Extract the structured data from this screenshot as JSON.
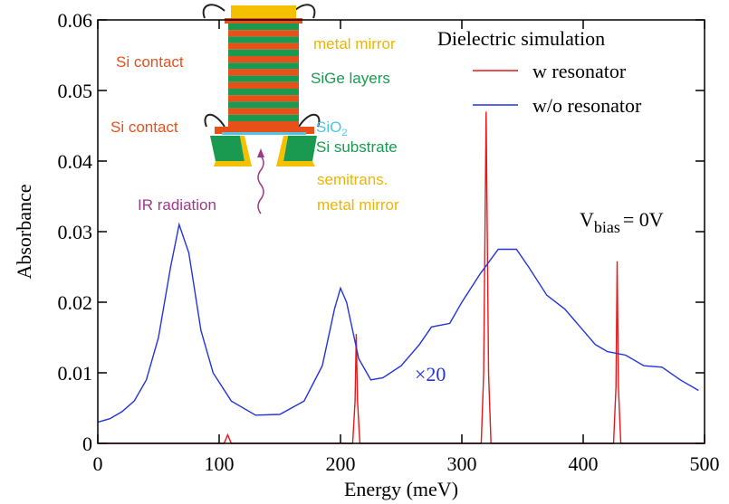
{
  "chart_data": {
    "type": "line",
    "x_label": "Energy (meV)",
    "y_label": "Absorbance",
    "xlim": [
      0,
      500
    ],
    "xticks": [
      0,
      100,
      200,
      300,
      400,
      500
    ],
    "ylim": [
      0,
      0.06
    ],
    "yticks": [
      0,
      0.01,
      0.02,
      0.03,
      0.04,
      0.05,
      0.06
    ],
    "legend_title": "Dielectric simulation",
    "legend": "upper right",
    "series": [
      {
        "name": "w resonator",
        "color": "#e41a1c",
        "x": [
          0,
          104,
          107,
          110,
          210,
          212,
          213,
          214,
          216,
          316,
          318,
          320,
          322,
          324,
          425,
          427,
          428,
          429,
          431,
          500
        ],
        "values": [
          0,
          0,
          0.0012,
          0,
          0,
          0.006,
          0.0155,
          0.006,
          0,
          0,
          0.01,
          0.047,
          0.01,
          0,
          0,
          0.008,
          0.0258,
          0.008,
          0,
          0
        ]
      },
      {
        "name": "w/o resonator",
        "color": "#2233dd",
        "x": [
          0,
          10,
          20,
          30,
          40,
          50,
          60,
          67,
          75,
          85,
          95,
          110,
          130,
          150,
          170,
          185,
          195,
          200,
          205,
          215,
          225,
          235,
          250,
          265,
          275,
          290,
          300,
          315,
          330,
          345,
          355,
          370,
          385,
          400,
          410,
          420,
          435,
          450,
          465,
          480,
          495
        ],
        "values": [
          0.003,
          0.0035,
          0.0045,
          0.006,
          0.009,
          0.015,
          0.025,
          0.031,
          0.027,
          0.016,
          0.01,
          0.006,
          0.004,
          0.0041,
          0.006,
          0.011,
          0.019,
          0.022,
          0.02,
          0.012,
          0.009,
          0.0093,
          0.011,
          0.014,
          0.0165,
          0.017,
          0.02,
          0.024,
          0.0275,
          0.0275,
          0.025,
          0.021,
          0.019,
          0.016,
          0.014,
          0.013,
          0.0125,
          0.011,
          0.0108,
          0.009,
          0.0075
        ]
      }
    ],
    "annotations": {
      "scale": "×20",
      "bias": {
        "text": "V",
        "sub": "bias",
        "tail": "= 0V"
      },
      "inset": {
        "metal_mirror": "metal mirror",
        "si_contact_top": "Si contact",
        "sige": "SiGe layers",
        "si_contact_bottom": "Si contact",
        "sio2": {
          "text": "SiO",
          "sub": "2"
        },
        "substrate": "Si substrate",
        "semitrans": "semitrans.",
        "semitrans_mirror": "metal mirror",
        "ir": "IR radiation"
      }
    }
  }
}
